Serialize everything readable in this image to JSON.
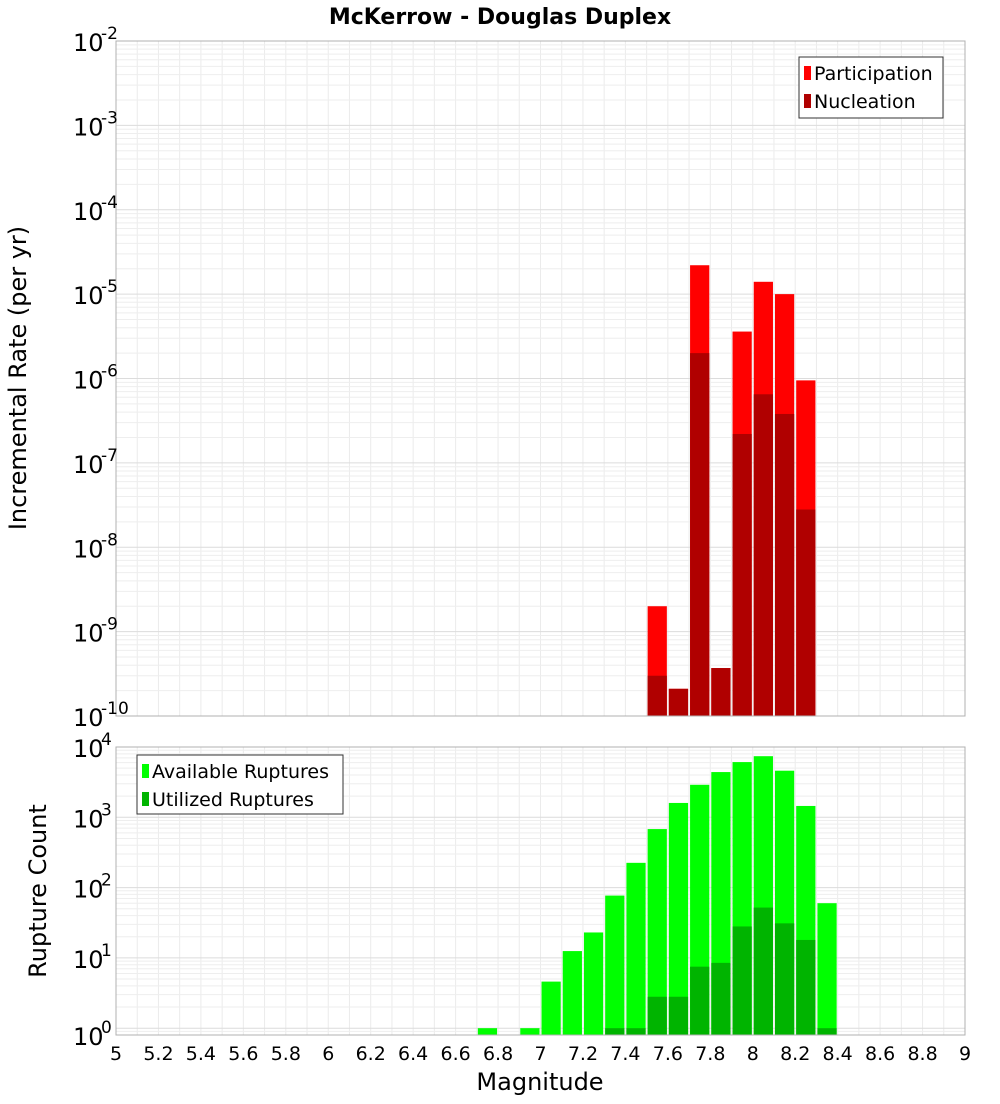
{
  "title": "McKerrow - Douglas Duplex",
  "xlabel": "Magnitude",
  "x_ticks": [
    "5",
    "5.2",
    "5.4",
    "5.6",
    "5.8",
    "6",
    "6.2",
    "6.4",
    "6.6",
    "6.8",
    "7",
    "7.2",
    "7.4",
    "7.6",
    "7.8",
    "8",
    "8.2",
    "8.4",
    "8.6",
    "8.8",
    "9"
  ],
  "chart_data": [
    {
      "type": "bar",
      "title": "McKerrow - Douglas Duplex",
      "xlabel": "",
      "ylabel": "Incremental Rate (per yr)",
      "y_scale": "log",
      "ylim": [
        1e-10,
        0.01
      ],
      "xlim": [
        5,
        9
      ],
      "bar_width": 0.1,
      "y_tick_exponents": [
        "-10",
        "-9",
        "-8",
        "-7",
        "-6",
        "-5",
        "-4",
        "-3",
        "-2"
      ],
      "grid": true,
      "legend_position": "top-right",
      "series": [
        {
          "name": "Participation",
          "color": "#ff0000",
          "x": [
            7.55,
            7.65,
            7.75,
            7.85,
            7.95,
            8.05,
            8.15,
            8.25
          ],
          "values": [
            2e-09,
            2.1e-10,
            2.2e-05,
            3.7e-10,
            3.6e-06,
            1.4e-05,
            1e-05,
            9.5e-07
          ]
        },
        {
          "name": "Nucleation",
          "color": "#b00000",
          "x": [
            7.55,
            7.65,
            7.75,
            7.85,
            7.95,
            8.05,
            8.15,
            8.25
          ],
          "values": [
            3e-10,
            2.1e-10,
            2e-06,
            3.7e-10,
            2.2e-07,
            6.5e-07,
            3.8e-07,
            2.8e-08
          ]
        }
      ]
    },
    {
      "type": "bar",
      "title": "",
      "xlabel": "Magnitude",
      "ylabel": "Rupture Count",
      "y_scale": "log",
      "ylim": [
        0.8,
        10000
      ],
      "xlim": [
        5,
        9
      ],
      "bar_width": 0.1,
      "y_tick_exponents": [
        "0",
        "1",
        "2",
        "3",
        "4"
      ],
      "grid": true,
      "legend_position": "top-left",
      "series": [
        {
          "name": "Available Ruptures",
          "color": "#00ff00",
          "x": [
            6.75,
            6.95,
            7.05,
            7.15,
            7.25,
            7.35,
            7.45,
            7.55,
            7.65,
            7.75,
            7.85,
            7.95,
            8.05,
            8.15,
            8.25,
            8.35
          ],
          "values": [
            1,
            1,
            4.6,
            12.5,
            23,
            77,
            225,
            680,
            1600,
            2900,
            4400,
            6100,
            7400,
            4600,
            1450,
            60
          ]
        },
        {
          "name": "Utilized Ruptures",
          "color": "#00b400",
          "x": [
            7.35,
            7.45,
            7.55,
            7.65,
            7.75,
            7.85,
            7.95,
            8.05,
            8.15,
            8.25,
            8.35
          ],
          "values": [
            1,
            1,
            2.8,
            2.8,
            7.5,
            8.5,
            28,
            52,
            31,
            18,
            1
          ]
        }
      ]
    }
  ]
}
